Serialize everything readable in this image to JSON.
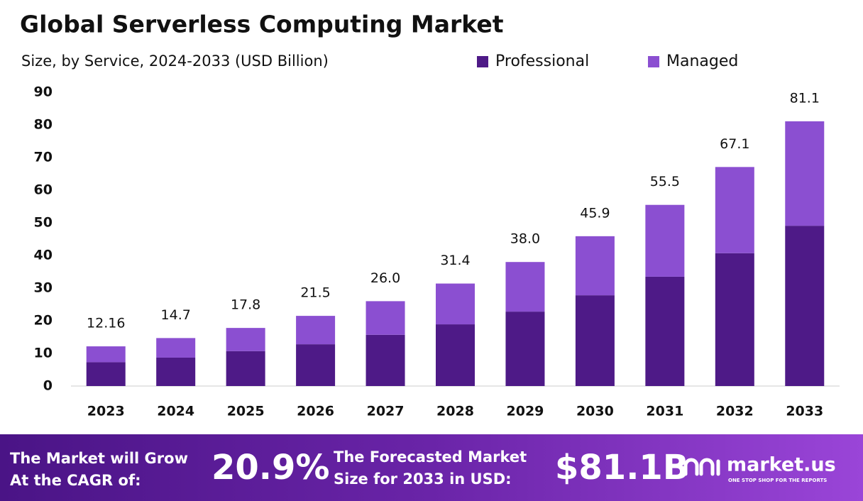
{
  "chart_data": {
    "type": "stacked-bar",
    "title": "Global Serverless Computing Market",
    "subtitle": "Size, by Service, 2024-2033 (USD Billion)",
    "categories": [
      "2023",
      "2024",
      "2025",
      "2026",
      "2027",
      "2028",
      "2029",
      "2030",
      "2031",
      "2032",
      "2033"
    ],
    "series": [
      {
        "name": "Professional",
        "color": "#4e1a87",
        "values": [
          7.3,
          8.7,
          10.7,
          12.8,
          15.7,
          18.9,
          22.8,
          27.8,
          33.5,
          40.7,
          49.1
        ]
      },
      {
        "name": "Managed",
        "color": "#8b4fd1",
        "values": [
          4.86,
          6.0,
          7.1,
          8.7,
          10.3,
          12.5,
          15.2,
          18.1,
          22.0,
          26.4,
          32.0
        ]
      }
    ],
    "totals": [
      12.16,
      14.7,
      17.8,
      21.5,
      26.0,
      31.4,
      38.0,
      45.9,
      55.5,
      67.1,
      81.1
    ],
    "total_labels": [
      "12.16",
      "14.7",
      "17.8",
      "21.5",
      "26.0",
      "31.4",
      "38.0",
      "45.9",
      "55.5",
      "67.1",
      "81.1"
    ],
    "ylim": [
      0,
      90
    ],
    "yticks": [
      0,
      10,
      20,
      30,
      40,
      50,
      60,
      70,
      80,
      90
    ],
    "grid": false,
    "legend": "top"
  },
  "footer": {
    "cagr_text": [
      "The Market will Grow",
      "At the CAGR of:"
    ],
    "cagr": "20.9%",
    "forecast_text": [
      "The Forecasted Market",
      "Size for 2033 in USD:"
    ],
    "forecast": "$81.1B",
    "brand": "market.us",
    "tagline": "ONE STOP SHOP FOR THE REPORTS"
  }
}
